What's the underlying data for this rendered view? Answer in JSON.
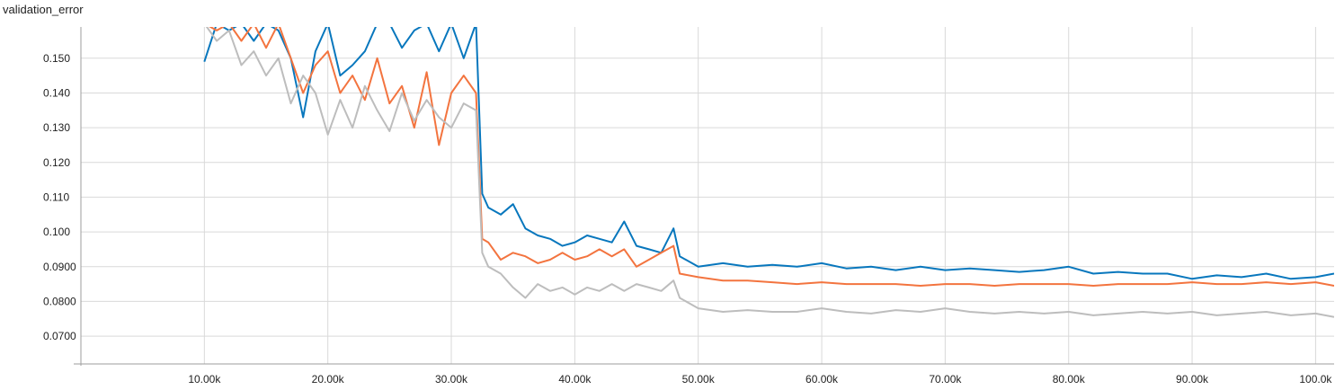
{
  "chart_data": {
    "type": "line",
    "title": "validation_error",
    "xlabel": "",
    "ylabel": "",
    "xlim": [
      0,
      101500
    ],
    "ylim": [
      0.062,
      0.159
    ],
    "grid": true,
    "x_ticks": [
      {
        "value": 10000,
        "label": "10.00k"
      },
      {
        "value": 20000,
        "label": "20.00k"
      },
      {
        "value": 30000,
        "label": "30.00k"
      },
      {
        "value": 40000,
        "label": "40.00k"
      },
      {
        "value": 50000,
        "label": "50.00k"
      },
      {
        "value": 60000,
        "label": "60.00k"
      },
      {
        "value": 70000,
        "label": "70.00k"
      },
      {
        "value": 80000,
        "label": "80.00k"
      },
      {
        "value": 90000,
        "label": "90.00k"
      },
      {
        "value": 100000,
        "label": "100.0k"
      }
    ],
    "y_ticks": [
      {
        "value": 0.07,
        "label": "0.0700"
      },
      {
        "value": 0.08,
        "label": "0.0800"
      },
      {
        "value": 0.09,
        "label": "0.0900"
      },
      {
        "value": 0.1,
        "label": "0.100"
      },
      {
        "value": 0.11,
        "label": "0.110"
      },
      {
        "value": 0.12,
        "label": "0.120"
      },
      {
        "value": 0.13,
        "label": "0.130"
      },
      {
        "value": 0.14,
        "label": "0.140"
      },
      {
        "value": 0.15,
        "label": "0.150"
      }
    ],
    "series": [
      {
        "color": "#0877bd",
        "x": [
          10000,
          11000,
          12000,
          13000,
          14000,
          15000,
          16000,
          17000,
          18000,
          19000,
          20000,
          21000,
          22000,
          23000,
          24000,
          25000,
          26000,
          27000,
          28000,
          29000,
          30000,
          31000,
          32000,
          32500,
          33000,
          34000,
          35000,
          36000,
          37000,
          38000,
          39000,
          40000,
          41000,
          42000,
          43000,
          44000,
          45000,
          46000,
          47000,
          48000,
          48500,
          50000,
          52000,
          54000,
          56000,
          58000,
          60000,
          62000,
          64000,
          66000,
          68000,
          70000,
          72000,
          74000,
          76000,
          78000,
          80000,
          82000,
          84000,
          86000,
          88000,
          90000,
          92000,
          94000,
          96000,
          98000,
          100000,
          101500
        ],
        "y": [
          0.149,
          0.16,
          0.158,
          0.16,
          0.155,
          0.16,
          0.158,
          0.15,
          0.133,
          0.152,
          0.16,
          0.145,
          0.148,
          0.152,
          0.16,
          0.16,
          0.153,
          0.158,
          0.16,
          0.152,
          0.16,
          0.15,
          0.16,
          0.111,
          0.107,
          0.105,
          0.108,
          0.101,
          0.099,
          0.098,
          0.096,
          0.097,
          0.099,
          0.098,
          0.097,
          0.103,
          0.096,
          0.095,
          0.094,
          0.101,
          0.093,
          0.09,
          0.091,
          0.09,
          0.0905,
          0.09,
          0.091,
          0.0895,
          0.09,
          0.089,
          0.09,
          0.089,
          0.0895,
          0.089,
          0.0885,
          0.089,
          0.09,
          0.088,
          0.0885,
          0.088,
          0.088,
          0.0865,
          0.0875,
          0.087,
          0.088,
          0.0865,
          0.087,
          0.088
        ]
      },
      {
        "color": "#f3743f",
        "x": [
          10000,
          11000,
          12000,
          13000,
          14000,
          15000,
          16000,
          17000,
          18000,
          19000,
          20000,
          21000,
          22000,
          23000,
          24000,
          25000,
          26000,
          27000,
          28000,
          29000,
          30000,
          31000,
          32000,
          32500,
          33000,
          34000,
          35000,
          36000,
          37000,
          38000,
          39000,
          40000,
          41000,
          42000,
          43000,
          44000,
          45000,
          46000,
          47000,
          48000,
          48500,
          50000,
          52000,
          54000,
          56000,
          58000,
          60000,
          62000,
          64000,
          66000,
          68000,
          70000,
          72000,
          74000,
          76000,
          78000,
          80000,
          82000,
          84000,
          86000,
          88000,
          90000,
          92000,
          94000,
          96000,
          98000,
          100000,
          101500
        ],
        "y": [
          0.16,
          0.158,
          0.16,
          0.155,
          0.16,
          0.153,
          0.16,
          0.15,
          0.14,
          0.148,
          0.152,
          0.14,
          0.145,
          0.138,
          0.15,
          0.137,
          0.142,
          0.13,
          0.146,
          0.125,
          0.14,
          0.145,
          0.14,
          0.098,
          0.097,
          0.092,
          0.094,
          0.093,
          0.091,
          0.092,
          0.094,
          0.092,
          0.093,
          0.095,
          0.093,
          0.095,
          0.09,
          0.092,
          0.094,
          0.096,
          0.088,
          0.087,
          0.086,
          0.086,
          0.0855,
          0.085,
          0.0855,
          0.085,
          0.085,
          0.085,
          0.0845,
          0.085,
          0.085,
          0.0845,
          0.085,
          0.085,
          0.085,
          0.0845,
          0.085,
          0.085,
          0.085,
          0.0855,
          0.085,
          0.085,
          0.0855,
          0.085,
          0.0855,
          0.0845
        ]
      },
      {
        "color": "#bdbdbd",
        "x": [
          10000,
          11000,
          12000,
          13000,
          14000,
          15000,
          16000,
          17000,
          18000,
          19000,
          20000,
          21000,
          22000,
          23000,
          24000,
          25000,
          26000,
          27000,
          28000,
          29000,
          30000,
          31000,
          32000,
          32500,
          33000,
          34000,
          35000,
          36000,
          37000,
          38000,
          39000,
          40000,
          41000,
          42000,
          43000,
          44000,
          45000,
          46000,
          47000,
          48000,
          48500,
          50000,
          52000,
          54000,
          56000,
          58000,
          60000,
          62000,
          64000,
          66000,
          68000,
          70000,
          72000,
          74000,
          76000,
          78000,
          80000,
          82000,
          84000,
          86000,
          88000,
          90000,
          92000,
          94000,
          96000,
          98000,
          100000,
          101500
        ],
        "y": [
          0.16,
          0.155,
          0.158,
          0.148,
          0.152,
          0.145,
          0.15,
          0.137,
          0.145,
          0.14,
          0.128,
          0.138,
          0.13,
          0.142,
          0.135,
          0.129,
          0.14,
          0.132,
          0.138,
          0.133,
          0.13,
          0.137,
          0.135,
          0.094,
          0.09,
          0.088,
          0.084,
          0.081,
          0.085,
          0.083,
          0.084,
          0.082,
          0.084,
          0.083,
          0.085,
          0.083,
          0.085,
          0.084,
          0.083,
          0.086,
          0.081,
          0.078,
          0.077,
          0.0775,
          0.077,
          0.077,
          0.078,
          0.077,
          0.0765,
          0.0775,
          0.077,
          0.078,
          0.077,
          0.0765,
          0.077,
          0.0765,
          0.077,
          0.076,
          0.0765,
          0.077,
          0.0765,
          0.077,
          0.076,
          0.0765,
          0.077,
          0.076,
          0.0765,
          0.0755
        ]
      }
    ]
  }
}
